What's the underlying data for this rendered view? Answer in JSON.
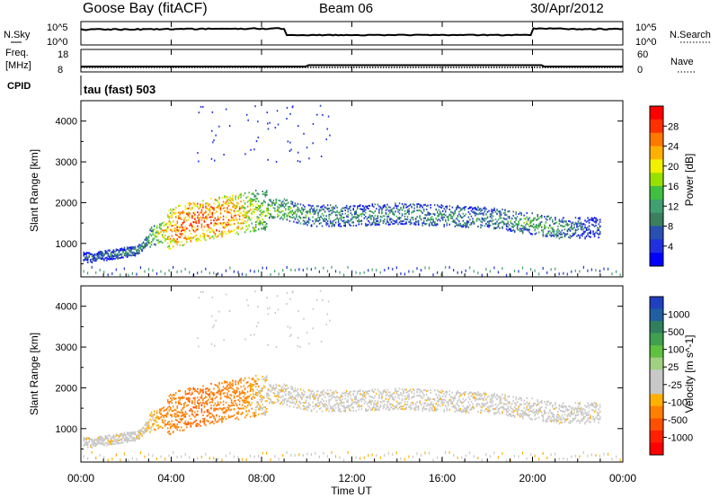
{
  "header": {
    "station": "Goose Bay (fitACF)",
    "beam": "Beam 06",
    "date": "30/Apr/2012"
  },
  "noise_panel": {
    "left_label": "N.Sky",
    "right_label": "N.Search",
    "ticks_left": [
      "10^5",
      "10^0"
    ],
    "ticks_right": [
      "10^5",
      "10^0"
    ]
  },
  "freq_panel": {
    "left_label": "Freq.",
    "left_unit": "[MHz]",
    "right_label": "Nave",
    "ticks_left": [
      "18",
      "8"
    ],
    "ticks_right": [
      "60",
      "0"
    ]
  },
  "cpid": {
    "label": "CPID",
    "value": "tau (fast) 503"
  },
  "power_panel": {
    "ylabel": "Slant Range [km]",
    "colorbar_label": "Power [dB]",
    "colorbar_ticks": [
      "28",
      "24",
      "20",
      "16",
      "12",
      "8",
      "4"
    ],
    "colorbar_colors": [
      "#ff0000",
      "#ff3000",
      "#ff7800",
      "#ffb000",
      "#f0f000",
      "#98e000",
      "#40c040",
      "#40a070",
      "#3a8060",
      "#2850b0",
      "#2030e0",
      "#0000ff"
    ]
  },
  "velocity_panel": {
    "ylabel": "Slant Range [km]",
    "colorbar_label": "Velocity [m s^-1]",
    "colorbar_ticks": [
      "1000",
      "500",
      "100",
      "25",
      "-25",
      "-100",
      "-500",
      "-1000"
    ],
    "colorbar_colors": [
      "#2040c0",
      "#2060a0",
      "#308060",
      "#40a050",
      "#60c040",
      "#a0d080",
      "#c8c8c8",
      "#c8c8c8",
      "#ffb000",
      "#ff8000",
      "#ff5000",
      "#ff2000",
      "#ff0000"
    ]
  },
  "xaxis": {
    "label": "Time UT",
    "ticks": [
      "00:00",
      "04:00",
      "08:00",
      "12:00",
      "16:00",
      "20:00",
      "00:00"
    ]
  },
  "chart_data": {
    "type": "heatmap",
    "title": "Goose Bay (fitACF) Beam 06 30/Apr/2012",
    "xlabel": "Time UT",
    "ylabel": "Slant Range [km]",
    "xlim_hours": [
      0,
      24
    ],
    "ylim_km": [
      180,
      4500
    ],
    "yticks": [
      1000,
      2000,
      3000,
      4000
    ],
    "xticks": [
      "00:00",
      "04:00",
      "08:00",
      "12:00",
      "16:00",
      "20:00",
      "00:00"
    ],
    "power_db_range": [
      0,
      30
    ],
    "velocity_range_ms": [
      -1000,
      1000
    ],
    "echo_band": [
      {
        "hour": 0.5,
        "range_km": 680,
        "power_db": 8,
        "velocity_ms": 0
      },
      {
        "hour": 1.5,
        "range_km": 760,
        "power_db": 9,
        "velocity_ms": 0
      },
      {
        "hour": 2.5,
        "range_km": 850,
        "power_db": 10,
        "velocity_ms": 0
      },
      {
        "hour": 3.0,
        "range_km": 1150,
        "power_db": 13,
        "velocity_ms": -50
      },
      {
        "hour": 4.0,
        "range_km": 1400,
        "power_db": 24,
        "velocity_ms": -300
      },
      {
        "hour": 5.0,
        "range_km": 1550,
        "power_db": 26,
        "velocity_ms": -400
      },
      {
        "hour": 6.0,
        "range_km": 1650,
        "power_db": 25,
        "velocity_ms": -350
      },
      {
        "hour": 7.0,
        "range_km": 1750,
        "power_db": 22,
        "velocity_ms": -250
      },
      {
        "hour": 8.0,
        "range_km": 1850,
        "power_db": 16,
        "velocity_ms": -50
      },
      {
        "hour": 9.0,
        "range_km": 1850,
        "power_db": 14,
        "velocity_ms": 0
      },
      {
        "hour": 10.0,
        "range_km": 1700,
        "power_db": 12,
        "velocity_ms": 0
      },
      {
        "hour": 12.0,
        "range_km": 1700,
        "power_db": 10,
        "velocity_ms": 0
      },
      {
        "hour": 14.0,
        "range_km": 1750,
        "power_db": 10,
        "velocity_ms": 0
      },
      {
        "hour": 16.0,
        "range_km": 1700,
        "power_db": 11,
        "velocity_ms": 0
      },
      {
        "hour": 18.0,
        "range_km": 1650,
        "power_db": 10,
        "velocity_ms": 0
      },
      {
        "hour": 20.0,
        "range_km": 1500,
        "power_db": 13,
        "velocity_ms": 0
      },
      {
        "hour": 21.0,
        "range_km": 1400,
        "power_db": 12,
        "velocity_ms": 0
      },
      {
        "hour": 22.5,
        "range_km": 1400,
        "power_db": 6,
        "velocity_ms": 0
      }
    ]
  }
}
